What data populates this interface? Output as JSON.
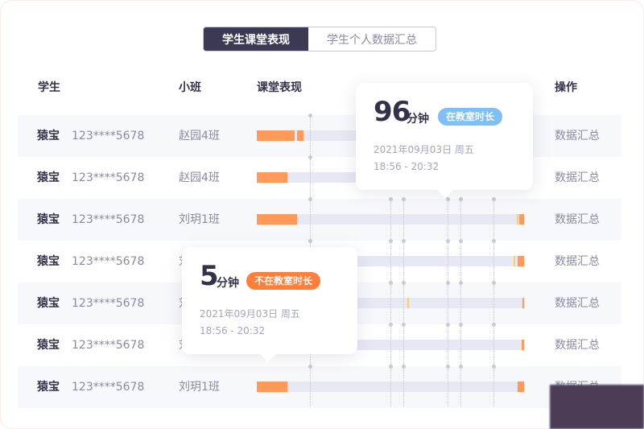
{
  "tabs": [
    {
      "label": "学生课堂表现",
      "active": true
    },
    {
      "label": "学生个人数据汇总",
      "active": false
    }
  ],
  "headers": {
    "student": "学生",
    "class": "小班",
    "performance": "课堂表现",
    "action": "操作"
  },
  "colors": {
    "present": "#ff9a5a",
    "absent_mark": "#ffcc66",
    "track": "#e6e8f4",
    "in_badge": "#7fbff5",
    "out_badge": "#ff7f3a"
  },
  "rows": [
    {
      "name": "猿宝",
      "phone": "123****5678",
      "class": "赵园4班",
      "action": "数据汇总",
      "segments": [
        [
          0,
          0.142,
          "p"
        ],
        [
          0.151,
          0.175,
          "p"
        ]
      ]
    },
    {
      "name": "猿宝",
      "phone": "123****5678",
      "class": "赵园4班",
      "action": "数据汇总",
      "segments": [
        [
          0,
          0.114,
          "p"
        ]
      ]
    },
    {
      "name": "猿宝",
      "phone": "123****5678",
      "class": "刘玥1班",
      "action": "数据汇总",
      "segments": [
        [
          0,
          0.15,
          "p"
        ],
        [
          0.974,
          0.979,
          "y"
        ],
        [
          0.983,
          1,
          "p"
        ]
      ]
    },
    {
      "name": "猿宝",
      "phone": "123****5678",
      "class": "刘玥1班",
      "action": "数据汇总",
      "segments": [
        [
          0.962,
          0.967,
          "y"
        ],
        [
          0.976,
          1,
          "p"
        ]
      ]
    },
    {
      "name": "猿宝",
      "phone": "123****5678",
      "class": "刘玥1班",
      "action": "数据汇总",
      "segments": [
        [
          0.563,
          0.569,
          "y"
        ],
        [
          0.994,
          1,
          "p"
        ]
      ]
    },
    {
      "name": "猿宝",
      "phone": "123****5678",
      "class": "刘玥1班",
      "action": "数据汇总",
      "segments": [
        [
          0.992,
          1,
          "p"
        ]
      ]
    },
    {
      "name": "猿宝",
      "phone": "123****5678",
      "class": "刘玥1班",
      "action": "数据汇总",
      "segments": [
        [
          0,
          0.114,
          "p"
        ],
        [
          0.976,
          1,
          "p"
        ]
      ]
    }
  ],
  "tooltip_in": {
    "value": "96",
    "unit": "分钟",
    "badge": "在教室时长",
    "date": "2021年09月03日  周五",
    "time": "18:56 - 20:32"
  },
  "tooltip_out": {
    "value": "5",
    "unit": "分钟",
    "badge": "不在教室时长",
    "date": "2021年09月03日  周五",
    "time": "18:56 - 20:32"
  }
}
